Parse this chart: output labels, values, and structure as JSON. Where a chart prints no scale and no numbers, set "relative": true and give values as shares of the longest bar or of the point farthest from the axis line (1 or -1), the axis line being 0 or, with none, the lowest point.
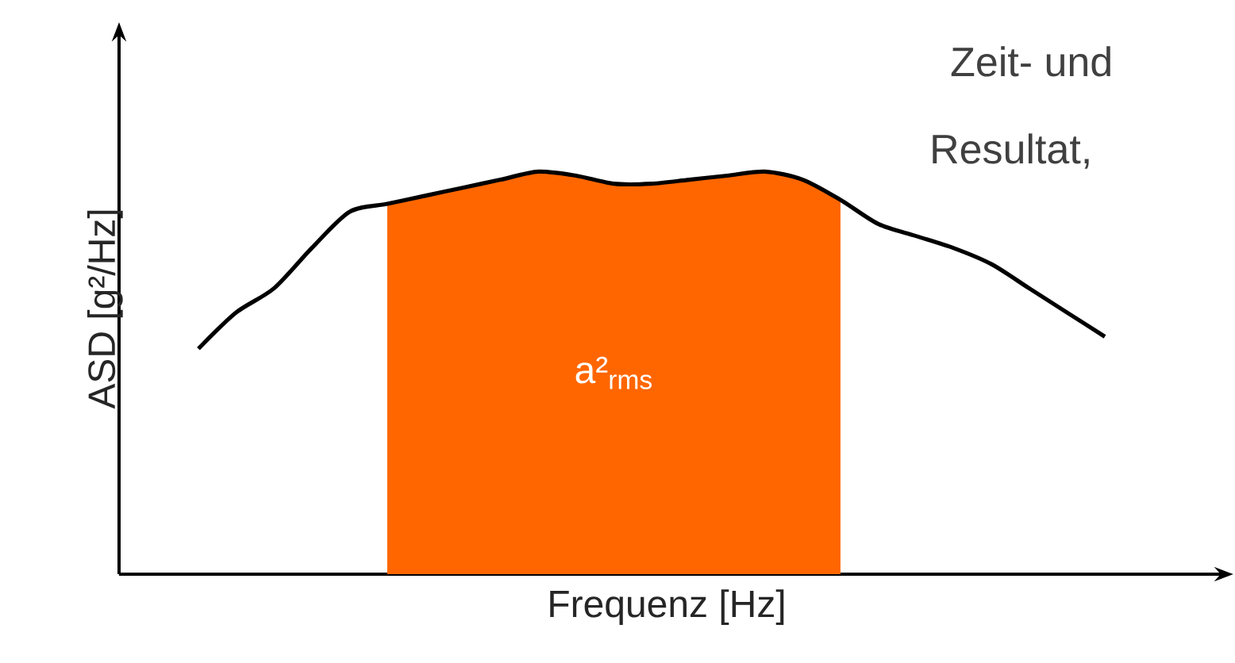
{
  "chart_data": {
    "type": "line",
    "relative": true,
    "xlabel": "Frequenz [Hz]",
    "ylabel": "ASD [g²/Hz]",
    "categories": [
      null,
      null,
      null,
      null,
      null,
      null,
      null,
      null,
      null,
      null,
      null,
      null,
      null,
      null,
      null,
      null,
      null,
      null,
      null,
      null,
      null,
      null,
      null,
      null,
      null
    ],
    "series": [
      {
        "type": "area",
        "color": "#ff6600",
        "values": [
          null,
          null,
          null,
          null,
          null,
          0.92,
          0.94,
          0.96,
          0.98,
          1.0,
          0.99,
          0.97,
          0.97,
          0.98,
          0.99,
          1.0,
          0.98,
          0.93,
          null,
          null,
          null,
          null,
          null,
          null,
          null
        ]
      },
      {
        "color": "#000000",
        "values": [
          0.56,
          0.65,
          0.71,
          0.81,
          0.9,
          0.92,
          0.94,
          0.96,
          0.98,
          1.0,
          0.99,
          0.97,
          0.97,
          0.98,
          0.99,
          1.0,
          0.98,
          0.93,
          0.87,
          0.84,
          0.81,
          0.77,
          0.71,
          0.65,
          0.59
        ]
      }
    ],
    "annotations": [
      "a²$_{rms}$",
      "Zeit- und",
      "Resultat,"
    ]
  }
}
